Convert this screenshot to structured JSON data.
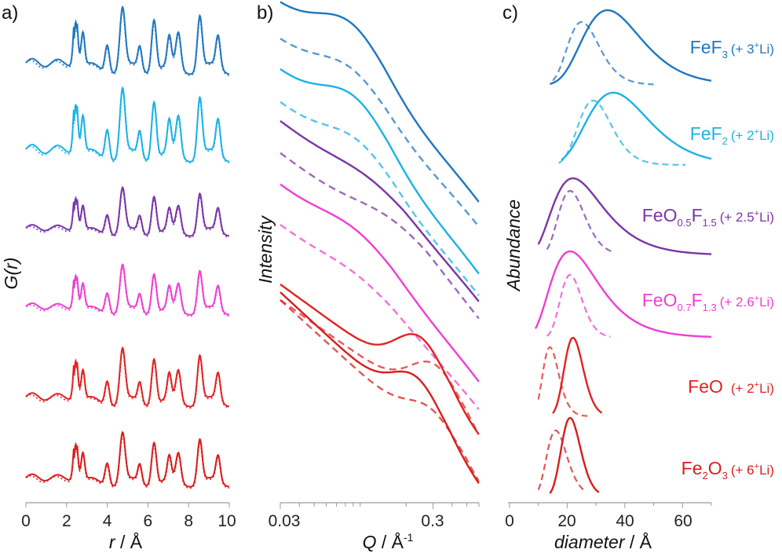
{
  "panels": {
    "a": "a)",
    "b": "b)",
    "c": "c)"
  },
  "colors": {
    "fef3": "#1f77c0",
    "fef2": "#1bb2e6",
    "feo05f15": "#7a35a8",
    "feo07f13": "#ee3fd2",
    "feo": "#e32222",
    "fe2o3": "#d81d1d",
    "axis": "#9a9a9a"
  },
  "chart_data": [
    {
      "type": "line",
      "panel": "a",
      "title": "",
      "ylabel_italic": "G(r)",
      "xlabel_italic": "r",
      "xlabel_unit": " / Å",
      "xlim": [
        0,
        10
      ],
      "xticks": [
        "0",
        "2",
        "4",
        "6",
        "8",
        "10"
      ],
      "peak_positions": [
        2.45,
        2.8,
        4.0,
        4.75,
        5.6,
        6.3,
        7.05,
        7.5,
        8.55,
        9.45
      ],
      "series": [
        {
          "name": "FeF3",
          "color_key": "fef3"
        },
        {
          "name": "FeF2",
          "color_key": "fef2"
        },
        {
          "name": "FeO0.5F1.5",
          "color_key": "feo05f15"
        },
        {
          "name": "FeO0.7F1.3",
          "color_key": "feo07f13"
        },
        {
          "name": "FeO",
          "color_key": "feo"
        },
        {
          "name": "Fe2O3",
          "color_key": "fe2o3"
        }
      ],
      "styles": [
        "solid (data)",
        "dotted (fit)"
      ]
    },
    {
      "type": "line",
      "panel": "b",
      "title": "",
      "ylabel_italic": "Intensity",
      "xlabel_italic": "Q",
      "xlabel_unit": " / Å",
      "xlabel_sup": "-1",
      "xscale": "log",
      "xlim": [
        0.03,
        0.6
      ],
      "xticks": [
        "0.03",
        "0.3"
      ],
      "styles": [
        "solid (data)",
        "dashed (fit)"
      ]
    },
    {
      "type": "line",
      "panel": "c",
      "title": "",
      "ylabel_italic": "Abundance",
      "xlabel_italic": "diameter",
      "xlabel_unit": " / Å",
      "xlim": [
        0,
        70
      ],
      "xticks": [
        "0",
        "20",
        "40",
        "60"
      ],
      "series": [
        {
          "name": "FeF3",
          "li_label": "(+ 3",
          "li_sup": "+",
          "li_tail": "Li)",
          "color_key": "fef3",
          "solid_peak": 34,
          "dashed_peak": 25
        },
        {
          "name": "FeF2",
          "li_label": "(+ 2",
          "li_sup": "+",
          "li_tail": "Li)",
          "color_key": "fef2",
          "solid_peak": 36,
          "dashed_peak": 29
        },
        {
          "name": "FeO0.5F1.5",
          "li_label": "(+ 2.5",
          "li_sup": "+",
          "li_tail": "Li)",
          "color_key": "feo05f15",
          "solid_peak": 22,
          "dashed_peak": 21
        },
        {
          "name": "FeO0.7F1.3",
          "li_label": "(+ 2.6",
          "li_sup": "+",
          "li_tail": "Li)",
          "color_key": "feo07f13",
          "solid_peak": 21,
          "dashed_peak": 21
        },
        {
          "name": "FeO",
          "li_label": "(+ 2",
          "li_sup": "+",
          "li_tail": "Li)",
          "color_key": "feo",
          "solid_peak": 22,
          "dashed_peak": 14
        },
        {
          "name": "Fe2O3",
          "li_label": "(+ 6",
          "li_sup": "+",
          "li_tail": "Li)",
          "color_key": "fe2o3",
          "solid_peak": 21,
          "dashed_peak": 16
        }
      ]
    }
  ]
}
